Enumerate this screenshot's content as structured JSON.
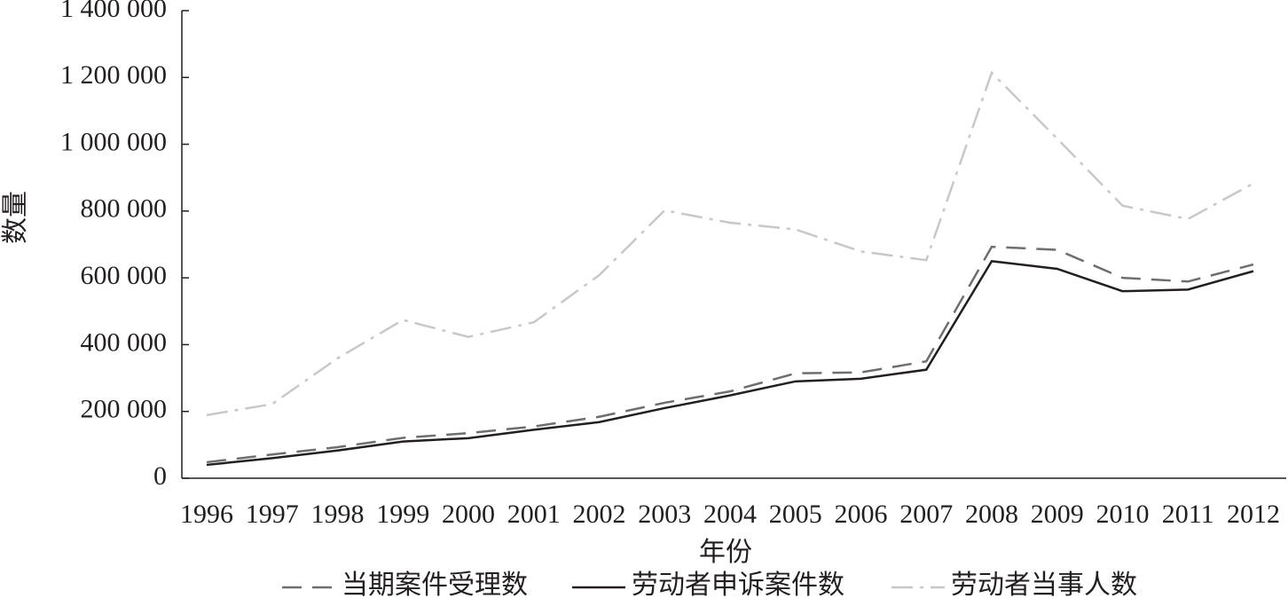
{
  "chart_data": {
    "type": "line",
    "x_label": "年份",
    "y_label": "数量",
    "categories": [
      "1996",
      "1997",
      "1998",
      "1999",
      "2000",
      "2001",
      "2002",
      "2003",
      "2004",
      "2005",
      "2006",
      "2007",
      "2008",
      "2009",
      "2010",
      "2011",
      "2012"
    ],
    "series": [
      {
        "name": "当期案件受理数",
        "color": "#6d6e71",
        "line_style": "dashed",
        "values": [
          48000,
          71000,
          93000,
          121000,
          135000,
          155000,
          184000,
          226000,
          260000,
          314000,
          317000,
          350000,
          693000,
          684000,
          600000,
          589000,
          640000
        ]
      },
      {
        "name": "劳动者申诉案件数",
        "color": "#231f20",
        "line_style": "solid",
        "values": [
          40000,
          60000,
          83000,
          110000,
          120000,
          145000,
          168000,
          210000,
          248000,
          290000,
          298000,
          325000,
          650000,
          627000,
          560000,
          565000,
          620000
        ]
      },
      {
        "name": "劳动者当事人数",
        "color": "#c7c8ca",
        "line_style": "dashdot",
        "values": [
          189000,
          222000,
          359000,
          474000,
          423000,
          467000,
          608000,
          802000,
          765000,
          745000,
          679000,
          653000,
          1214000,
          1017000,
          816000,
          776000,
          883000
        ]
      }
    ],
    "ylim": [
      0,
      1400000
    ],
    "yticks": [
      0,
      {
        "value": 200000,
        "label": "200 000"
      },
      {
        "value": 400000,
        "label": "400 000"
      },
      {
        "value": 600000,
        "label": "600 000"
      },
      {
        "value": 800000,
        "label": "800 000"
      },
      {
        "value": 1000000,
        "label": "1 000 000"
      },
      {
        "value": 1200000,
        "label": "1 200 000"
      },
      {
        "value": 1400000,
        "label": "1 400 000"
      }
    ],
    "grid": false
  }
}
